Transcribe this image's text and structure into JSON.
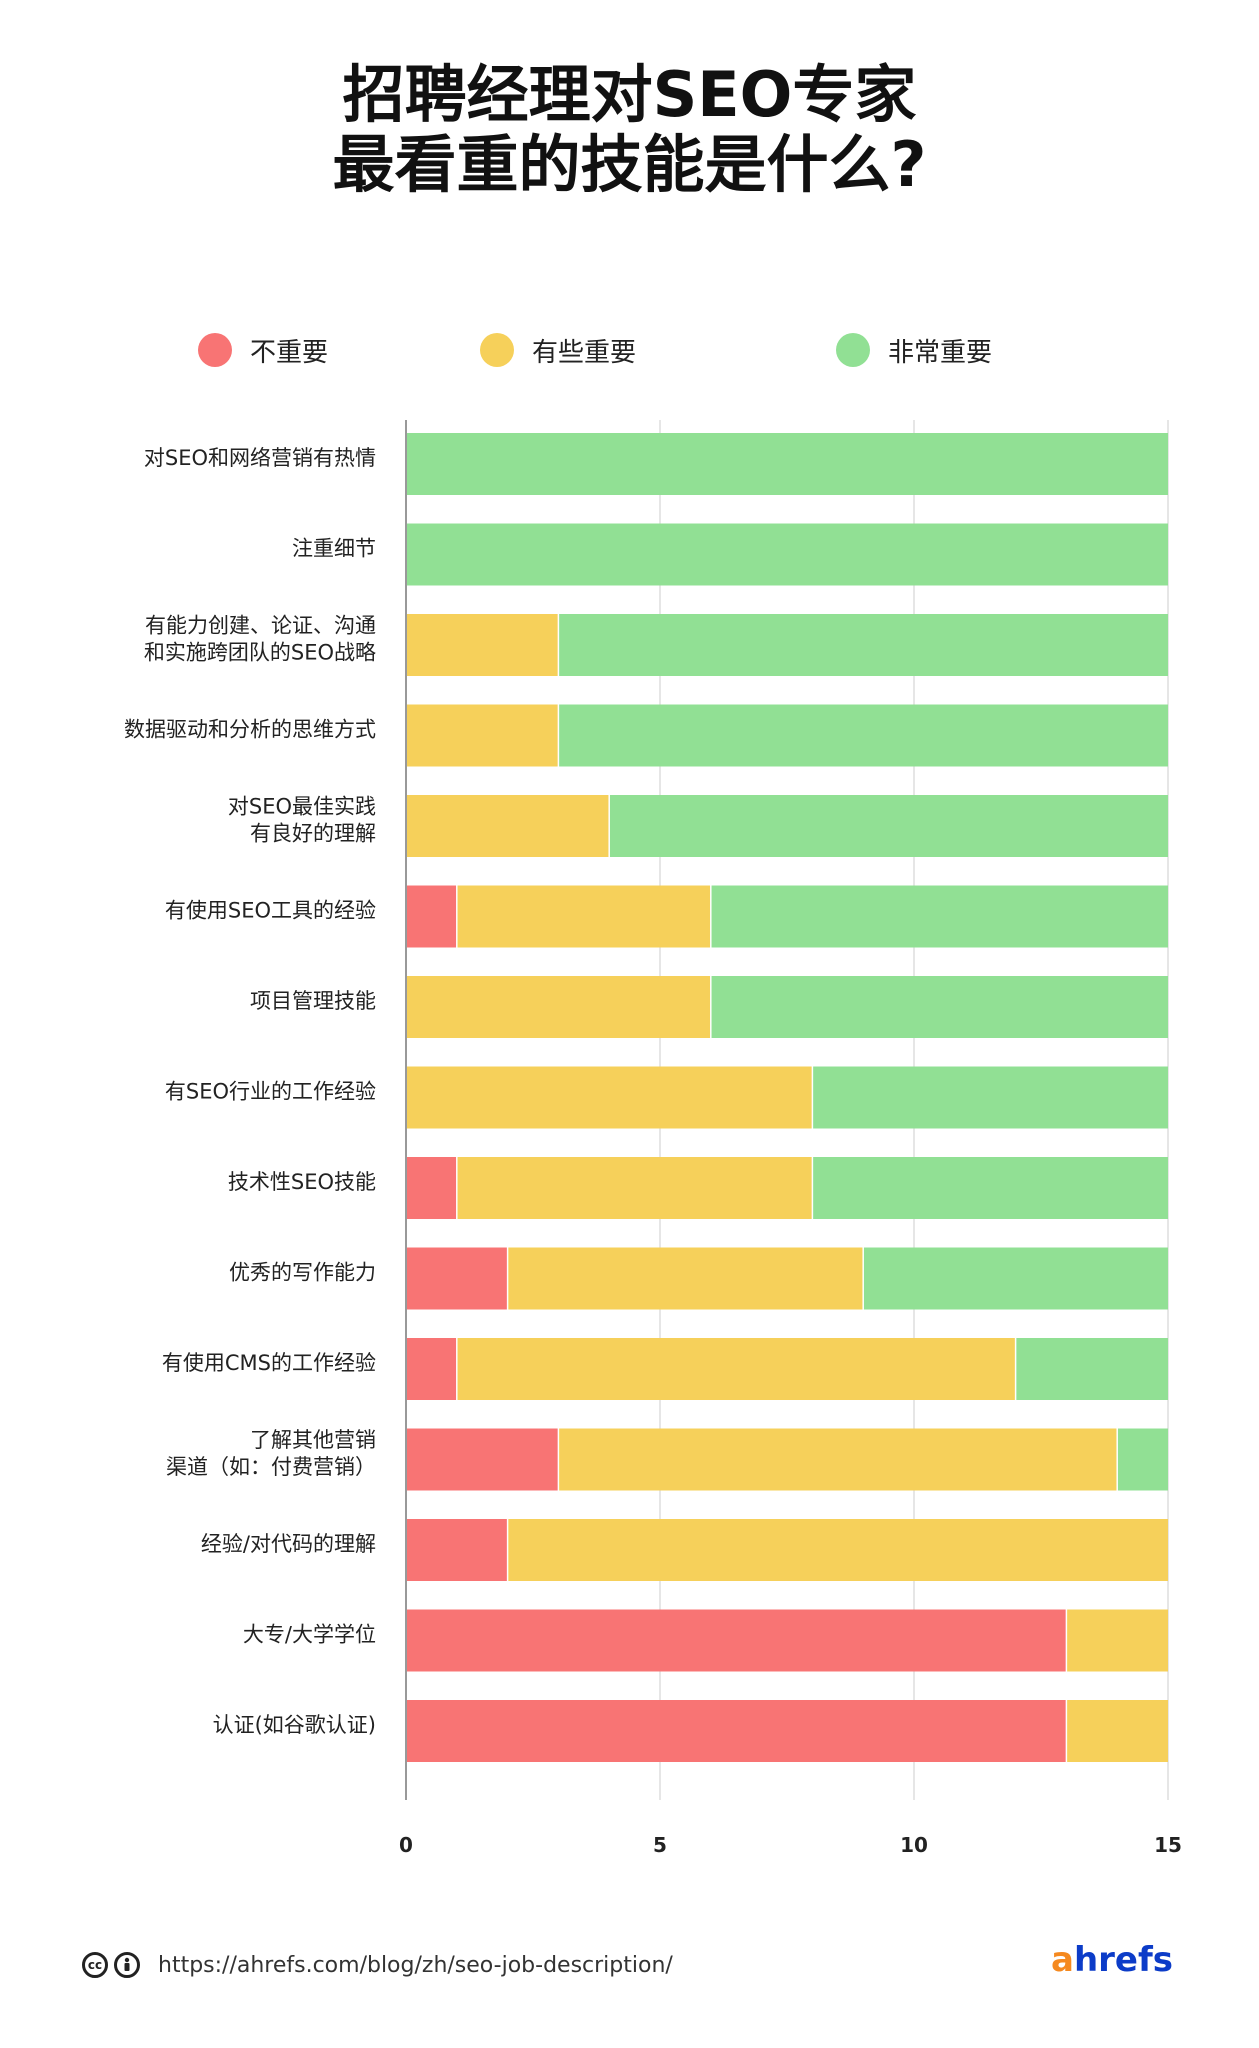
{
  "title_line1": "招聘经理对SEO专家",
  "title_line2": "最看重的技能是什么?",
  "footer": {
    "url": "https://ahrefs.com/blog/zh/seo-job-description/",
    "logo_first": "a",
    "logo_rest": "hrefs"
  },
  "colors": {
    "not_important": "#f87474",
    "somewhat": "#f6d05a",
    "very": "#91e094",
    "logo_accent": "#f5891f",
    "logo_main": "#0c3cc8"
  },
  "chart_data": {
    "type": "bar",
    "orientation": "horizontal",
    "stacked": true,
    "title": "招聘经理对SEO专家最看重的技能是什么?",
    "legend_placement": "top",
    "xlim": [
      0,
      15
    ],
    "x_ticks": [
      0,
      5,
      10,
      15
    ],
    "grid": true,
    "categories": [
      [
        "对SEO和网络营销有热情"
      ],
      [
        "注重细节"
      ],
      [
        "有能力创建、论证、沟通",
        "和实施跨团队的SEO战略"
      ],
      [
        "数据驱动和分析的思维方式"
      ],
      [
        "对SEO最佳实践",
        "有良好的理解"
      ],
      [
        "有使用SEO工具的经验"
      ],
      [
        "项目管理技能"
      ],
      [
        "有SEO行业的工作经验"
      ],
      [
        "技术性SEO技能"
      ],
      [
        "优秀的写作能力"
      ],
      [
        "有使用CMS的工作经验"
      ],
      [
        "了解其他营销",
        "渠道（如：付费营销）"
      ],
      [
        "经验/对代码的理解"
      ],
      [
        "大专/大学学位"
      ],
      [
        "认证(如谷歌认证)"
      ]
    ],
    "series": [
      {
        "name": "不重要",
        "color": "#f87474",
        "values": [
          0,
          0,
          0,
          0,
          0,
          1,
          0,
          0,
          1,
          2,
          1,
          3,
          2,
          13,
          13
        ]
      },
      {
        "name": "有些重要",
        "color": "#f6d05a",
        "values": [
          0,
          0,
          3,
          3,
          4,
          5,
          6,
          8,
          7,
          7,
          11,
          11,
          13,
          2,
          2
        ]
      },
      {
        "name": "非常重要",
        "color": "#91e094",
        "values": [
          15,
          15,
          12,
          12,
          11,
          9,
          9,
          7,
          7,
          6,
          3,
          1,
          0,
          0,
          0
        ]
      }
    ]
  }
}
